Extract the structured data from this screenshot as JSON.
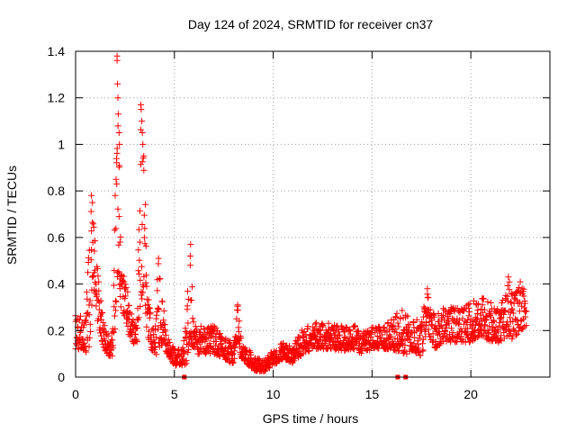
{
  "chart_data": {
    "type": "scatter",
    "title": "Day 124 of 2024, SRMTID for receiver cn37",
    "xlabel": "GPS time / hours",
    "ylabel": "SRMTID / TECUs",
    "xlim": [
      0,
      24
    ],
    "ylim": [
      0,
      1.4
    ],
    "xticks": [
      0,
      5,
      10,
      15,
      20
    ],
    "yticks": [
      0,
      0.2,
      0.4,
      0.6,
      0.8,
      1,
      1.2,
      1.4
    ],
    "xtick_labels": [
      "0",
      "5",
      "10",
      "15",
      "20"
    ],
    "ytick_labels": [
      "0",
      "0.2",
      "0.4",
      "0.6",
      "0.8",
      "1",
      "1.2",
      "1.4"
    ],
    "grid": true,
    "marker": "+",
    "color": "#ff0000",
    "envelope": [
      [
        0.0,
        0.12,
        0.27
      ],
      [
        0.3,
        0.12,
        0.27
      ],
      [
        0.5,
        0.1,
        0.25
      ],
      [
        0.7,
        0.12,
        0.6
      ],
      [
        0.8,
        0.25,
        0.78
      ],
      [
        0.9,
        0.4,
        0.7
      ],
      [
        1.0,
        0.3,
        0.55
      ],
      [
        1.2,
        0.2,
        0.4
      ],
      [
        1.4,
        0.12,
        0.25
      ],
      [
        1.6,
        0.1,
        0.2
      ],
      [
        1.8,
        0.08,
        0.18
      ],
      [
        1.9,
        0.1,
        0.25
      ],
      [
        2.0,
        0.2,
        0.85
      ],
      [
        2.1,
        0.4,
        1.38
      ],
      [
        2.2,
        0.4,
        1.05
      ],
      [
        2.3,
        0.3,
        0.5
      ],
      [
        2.5,
        0.25,
        0.4
      ],
      [
        2.7,
        0.18,
        0.35
      ],
      [
        2.9,
        0.15,
        0.25
      ],
      [
        3.1,
        0.12,
        0.22
      ],
      [
        3.3,
        0.2,
        1.17
      ],
      [
        3.45,
        0.4,
        1.0
      ],
      [
        3.6,
        0.2,
        0.5
      ],
      [
        3.8,
        0.12,
        0.25
      ],
      [
        4.0,
        0.1,
        0.2
      ],
      [
        4.2,
        0.08,
        0.5
      ],
      [
        4.4,
        0.15,
        0.35
      ],
      [
        4.6,
        0.1,
        0.18
      ],
      [
        4.8,
        0.08,
        0.15
      ],
      [
        5.0,
        0.05,
        0.12
      ],
      [
        5.3,
        0.05,
        0.12
      ],
      [
        5.6,
        0.05,
        0.25
      ],
      [
        5.8,
        0.15,
        0.57
      ],
      [
        6.0,
        0.1,
        0.22
      ],
      [
        6.5,
        0.1,
        0.22
      ],
      [
        7.0,
        0.1,
        0.22
      ],
      [
        7.5,
        0.08,
        0.18
      ],
      [
        8.0,
        0.05,
        0.15
      ],
      [
        8.2,
        0.15,
        0.31
      ],
      [
        8.4,
        0.08,
        0.15
      ],
      [
        9.0,
        0.03,
        0.1
      ],
      [
        9.5,
        0.02,
        0.07
      ],
      [
        10.0,
        0.05,
        0.12
      ],
      [
        10.5,
        0.08,
        0.15
      ],
      [
        11.0,
        0.06,
        0.13
      ],
      [
        11.5,
        0.1,
        0.22
      ],
      [
        12.0,
        0.12,
        0.23
      ],
      [
        12.5,
        0.12,
        0.24
      ],
      [
        13.0,
        0.12,
        0.24
      ],
      [
        13.5,
        0.11,
        0.22
      ],
      [
        14.0,
        0.12,
        0.23
      ],
      [
        14.5,
        0.1,
        0.2
      ],
      [
        15.0,
        0.12,
        0.22
      ],
      [
        15.5,
        0.12,
        0.22
      ],
      [
        16.0,
        0.12,
        0.25
      ],
      [
        16.5,
        0.1,
        0.3
      ],
      [
        17.0,
        0.1,
        0.25
      ],
      [
        17.5,
        0.08,
        0.25
      ],
      [
        17.8,
        0.2,
        0.38
      ],
      [
        18.2,
        0.1,
        0.25
      ],
      [
        18.5,
        0.15,
        0.3
      ],
      [
        19.0,
        0.15,
        0.3
      ],
      [
        19.5,
        0.15,
        0.3
      ],
      [
        20.0,
        0.15,
        0.32
      ],
      [
        20.5,
        0.18,
        0.35
      ],
      [
        21.0,
        0.15,
        0.32
      ],
      [
        21.5,
        0.15,
        0.3
      ],
      [
        21.9,
        0.18,
        0.43
      ],
      [
        22.2,
        0.15,
        0.37
      ],
      [
        22.5,
        0.2,
        0.42
      ],
      [
        22.8,
        0.22,
        0.35
      ]
    ],
    "spikes": [
      [
        0.8,
        0.78
      ],
      [
        0.85,
        0.75
      ],
      [
        2.1,
        1.38
      ],
      [
        2.1,
        1.36
      ],
      [
        2.12,
        1.26
      ],
      [
        2.14,
        1.2
      ],
      [
        2.16,
        1.13
      ],
      [
        2.2,
        1.05
      ],
      [
        2.22,
        1.0
      ],
      [
        2.05,
        0.85
      ],
      [
        2.08,
        0.83
      ],
      [
        2.2,
        0.69
      ],
      [
        2.25,
        0.58
      ],
      [
        3.3,
        1.17
      ],
      [
        3.32,
        1.15
      ],
      [
        3.35,
        1.1
      ],
      [
        3.38,
        1.05
      ],
      [
        3.4,
        1.0
      ],
      [
        3.45,
        0.95
      ],
      [
        4.2,
        0.51
      ],
      [
        5.82,
        0.57
      ],
      [
        5.8,
        0.52
      ],
      [
        8.2,
        0.31
      ],
      [
        17.8,
        0.38
      ],
      [
        21.9,
        0.43
      ]
    ],
    "zero_points": [
      5.5,
      16.3,
      16.7
    ]
  }
}
